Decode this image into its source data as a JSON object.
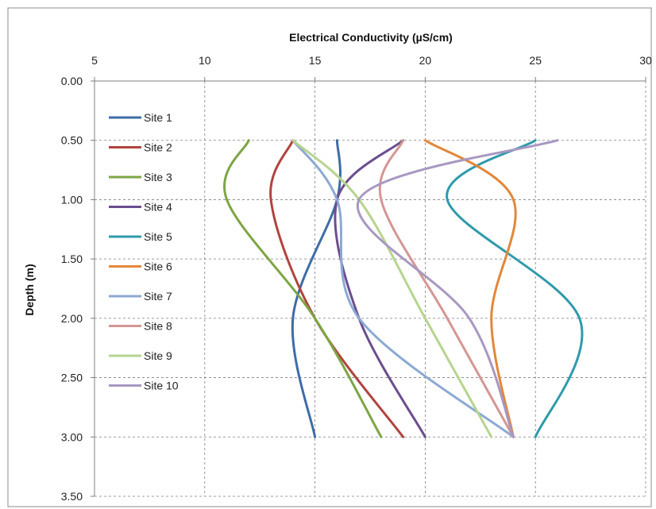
{
  "chart_data": {
    "type": "line",
    "title": "",
    "xlabel": "Electrical Conductivity (µS/cm)",
    "ylabel": "Depth (m)",
    "x_axis_position": "top",
    "y_axis_reversed": true,
    "xlim": [
      5,
      30
    ],
    "ylim": [
      0,
      3.5
    ],
    "xticks": [
      "5",
      "10",
      "15",
      "20",
      "25",
      "30"
    ],
    "yticks": [
      "0.00",
      "0.50",
      "1.00",
      "1.50",
      "2.00",
      "2.50",
      "3.00",
      "3.50"
    ],
    "grid": true,
    "legend_position": "top-left",
    "depth": [
      0.5,
      1.0,
      2.0,
      3.0
    ],
    "series": [
      {
        "name": "Site 1",
        "color": "#3e6ca7",
        "x": [
          16,
          16,
          14,
          15
        ]
      },
      {
        "name": "Site 2",
        "color": "#b0443f",
        "x": [
          14,
          13,
          15,
          19
        ]
      },
      {
        "name": "Site 3",
        "color": "#7da544",
        "x": [
          12,
          11,
          15,
          18
        ]
      },
      {
        "name": "Site 4",
        "color": "#6b4e8e",
        "x": [
          19,
          16,
          17,
          20
        ]
      },
      {
        "name": "Site 5",
        "color": "#2f9aab",
        "x": [
          25,
          21,
          27,
          25
        ]
      },
      {
        "name": "Site 6",
        "color": "#e2873a",
        "x": [
          20,
          24,
          23,
          24
        ]
      },
      {
        "name": "Site 7",
        "color": "#8ca9d3",
        "x": [
          14,
          16,
          17,
          24
        ]
      },
      {
        "name": "Site 8",
        "color": "#d59693",
        "x": [
          19,
          18,
          21,
          24
        ]
      },
      {
        "name": "Site 9",
        "color": "#b6d48f",
        "x": [
          14,
          17,
          20,
          23
        ]
      },
      {
        "name": "Site 10",
        "color": "#a898c1",
        "x": [
          26,
          17,
          22,
          24
        ]
      }
    ]
  }
}
